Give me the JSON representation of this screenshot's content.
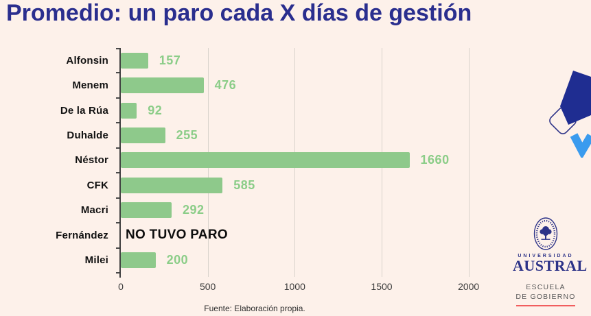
{
  "title": "Promedio: un paro cada X días de gestión",
  "source_note": "Fuente: Elaboración propia.",
  "chart_data": {
    "type": "bar",
    "orientation": "horizontal",
    "title": "Promedio: un paro cada X días de gestión",
    "categories": [
      "Alfonsin",
      "Menem",
      "De la Rúa",
      "Duhalde",
      "Néstor",
      "CFK",
      "Macri",
      "Fernández",
      "Milei"
    ],
    "values": [
      157,
      476,
      92,
      255,
      1660,
      585,
      292,
      null,
      200
    ],
    "no_data_category": "Fernández",
    "no_data_label": "NO TUVO PARO",
    "xticks": [
      0,
      500,
      1000,
      1500,
      2000
    ],
    "xlim": [
      0,
      2100
    ],
    "grid": true,
    "legend": false,
    "value_labels": true
  },
  "logo": {
    "university_label": "UNIVERSIDAD",
    "university_name": "AUSTRAL",
    "school_line1": "ESCUELA",
    "school_line2": "DE GOBIERNO"
  },
  "colors": {
    "background": "#fdf1ea",
    "title": "#2a2e8e",
    "bar": "#8ec98b",
    "value_label": "#8bcd88",
    "category_label": "#111111",
    "gridline": "#d8d2cb",
    "axis": "#3f3f3f",
    "tick_label": "#3a3a3a",
    "logo_navy": "#2d3388",
    "logo_red_line": "#f15e5e",
    "shape_navy": "#1f2d91",
    "shape_blue": "#3a9bee"
  }
}
